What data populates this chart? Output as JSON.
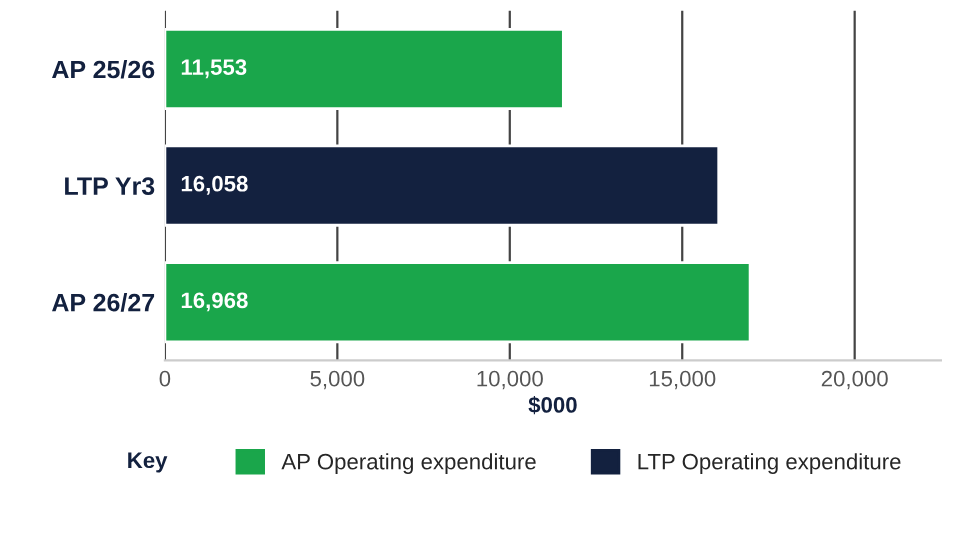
{
  "chart_data": {
    "type": "bar",
    "orientation": "horizontal",
    "categories": [
      "AP 25/26",
      "LTP Yr3",
      "AP 26/27"
    ],
    "series": [
      {
        "name": "AP Operating expenditure",
        "color": "#1aa64b",
        "values": [
          11553,
          null,
          16968
        ],
        "value_labels": [
          "11,553",
          null,
          "16,968"
        ]
      },
      {
        "name": "LTP Operating expenditure",
        "color": "#13213f",
        "values": [
          null,
          16058,
          null
        ],
        "value_labels": [
          null,
          "16,058",
          null
        ]
      }
    ],
    "xlim": [
      0,
      22500
    ],
    "xticks": [
      0,
      {
        "value": 5000,
        "label": "5,000"
      },
      {
        "value": 10000,
        "label": "10,000"
      },
      {
        "value": 15000,
        "label": "15,000"
      },
      {
        "value": 20000,
        "label": "20,000"
      }
    ],
    "xlabel": "$000",
    "legend_title": "Key",
    "legend": "bottom",
    "grid": "x"
  }
}
